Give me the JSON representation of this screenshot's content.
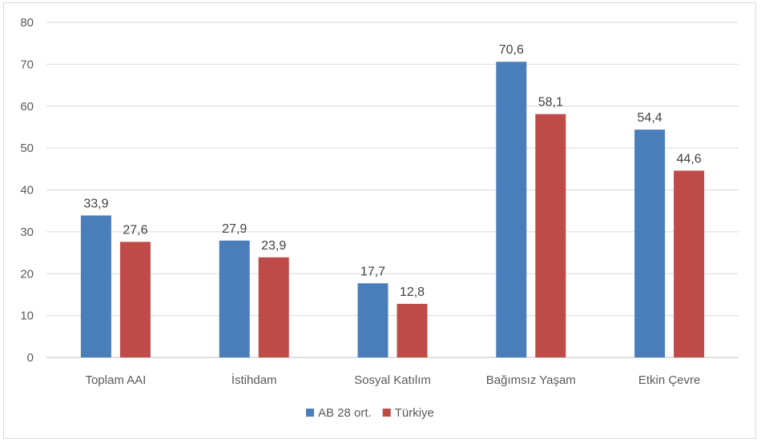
{
  "chart_data": {
    "type": "bar",
    "categories": [
      "Toplam AAI",
      "İstihdam",
      "Sosyal Katılım",
      "Bağımsız Yaşam",
      "Etkin Çevre"
    ],
    "series": [
      {
        "name": "AB 28 ort.",
        "values": [
          33.9,
          27.9,
          17.7,
          70.6,
          54.4
        ],
        "labels": [
          "33,9",
          "27,9",
          "17,7",
          "70,6",
          "54,4"
        ],
        "color": "#4a7ebb"
      },
      {
        "name": "Türkiye",
        "values": [
          27.6,
          23.9,
          12.8,
          58.1,
          44.6
        ],
        "labels": [
          "27,6",
          "23,9",
          "12,8",
          "58,1",
          "44,6"
        ],
        "color": "#be4b48"
      }
    ],
    "yticks": [
      "0",
      "10",
      "20",
      "30",
      "40",
      "50",
      "60",
      "70",
      "80"
    ],
    "ylim": [
      0,
      80
    ],
    "title": "",
    "xlabel": "",
    "ylabel": "",
    "grid": true,
    "legend": "bottom"
  }
}
